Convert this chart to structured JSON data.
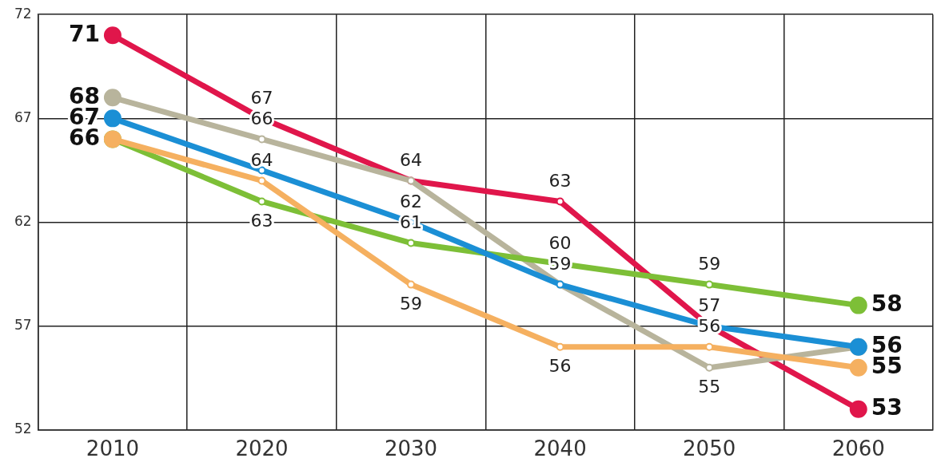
{
  "chart_data": {
    "type": "line",
    "categories": [
      "2010",
      "2020",
      "2030",
      "2040",
      "2050",
      "2060"
    ],
    "ylim": [
      52,
      72
    ],
    "yticks": [
      52,
      57,
      62,
      67,
      72
    ],
    "grid": true,
    "legend": false,
    "marker": "circle",
    "line_style": "solid",
    "series": [
      {
        "color": "#f5b060",
        "values": [
          66,
          64,
          59,
          56,
          56,
          55
        ],
        "value_labels": [
          null,
          "64",
          "59",
          "56",
          "56",
          "55"
        ]
      },
      {
        "color": "#1b8fd5",
        "values": [
          67,
          64.5,
          62,
          59,
          57,
          56
        ],
        "value_labels": [
          "67",
          null,
          "62",
          null,
          null,
          null
        ]
      },
      {
        "color": "#7dbf37",
        "values": [
          66,
          63,
          61,
          60,
          59,
          58
        ],
        "value_labels": [
          "66",
          "63",
          "61",
          "60",
          "59",
          "58"
        ]
      },
      {
        "color": "#b8b49c",
        "values": [
          68,
          66,
          64,
          59,
          55,
          56
        ],
        "value_labels": [
          "68",
          "66",
          null,
          "59",
          "55",
          "56"
        ]
      },
      {
        "color": "#e0164b",
        "values": [
          71,
          67,
          64,
          63,
          57,
          53
        ],
        "value_labels": [
          "71",
          "67",
          "64",
          "63",
          "57",
          "53"
        ]
      }
    ]
  }
}
